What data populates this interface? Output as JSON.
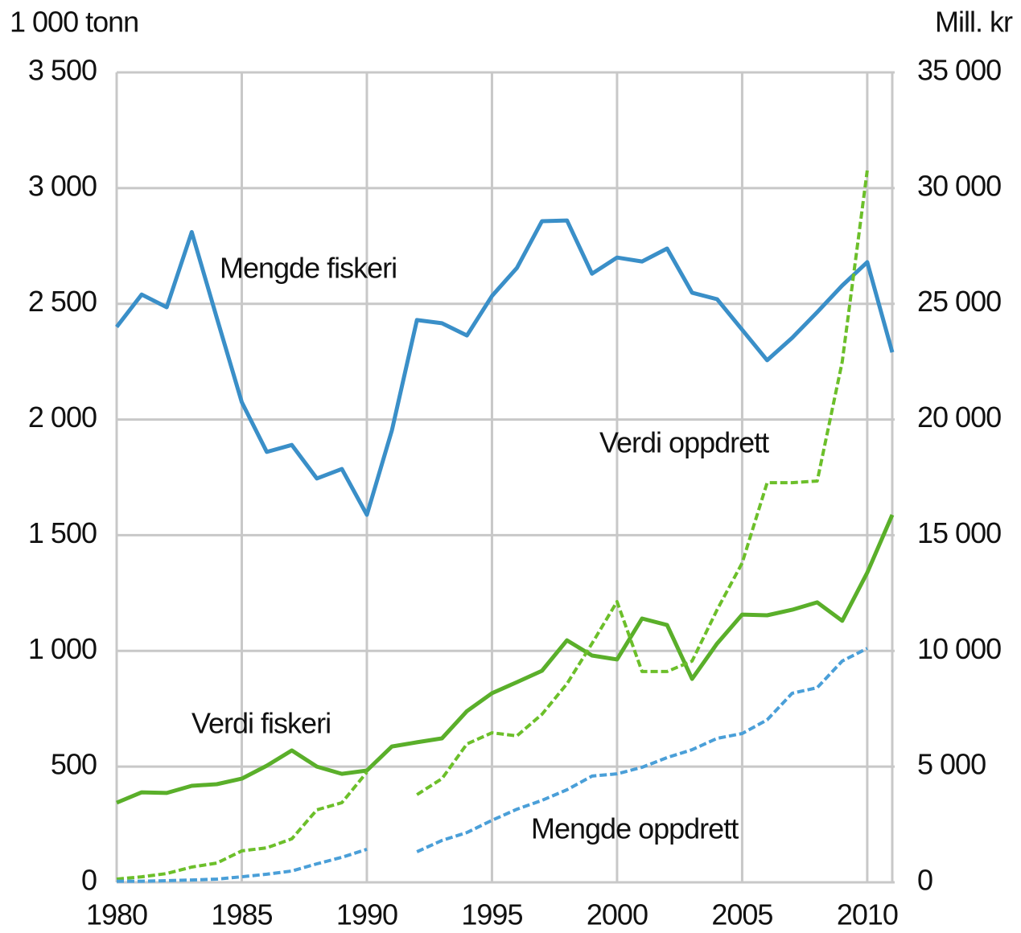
{
  "chart_data": {
    "type": "line",
    "y_label": "1 000 tonn",
    "y2_label": "Mill. kr",
    "x": [
      1980,
      1981,
      1982,
      1983,
      1984,
      1985,
      1986,
      1987,
      1988,
      1989,
      1990,
      1991,
      1992,
      1993,
      1994,
      1995,
      1996,
      1997,
      1998,
      1999,
      2000,
      2001,
      2002,
      2003,
      2004,
      2005,
      2006,
      2007,
      2008,
      2009,
      2010,
      2011
    ],
    "xlim": [
      1980,
      2011
    ],
    "xticks": [
      1980,
      1985,
      1990,
      1995,
      2000,
      2005,
      2010
    ],
    "ylim": [
      0,
      3500
    ],
    "yticks": [
      0,
      500,
      {
        "value": 1000,
        "label": "1 000"
      },
      {
        "value": 1500,
        "label": "1 500"
      },
      {
        "value": 2000,
        "label": "2 000"
      },
      {
        "value": 2500,
        "label": "2 500"
      },
      {
        "value": 3000,
        "label": "3 000"
      },
      {
        "value": 3500,
        "label": "3 500"
      }
    ],
    "y2lim": [
      0,
      35000
    ],
    "y2ticks": [
      0,
      {
        "value": 5000,
        "label": "5 000"
      },
      {
        "value": 10000,
        "label": "10 000"
      },
      {
        "value": 15000,
        "label": "15 000"
      },
      {
        "value": 20000,
        "label": "20 000"
      },
      {
        "value": 25000,
        "label": "25 000"
      },
      {
        "value": 30000,
        "label": "30 000"
      },
      {
        "value": 35000,
        "label": "35 000"
      }
    ],
    "grid": true,
    "series": [
      {
        "name": "Mengde fiskeri",
        "color": "#3a8fc8",
        "style": "solid",
        "values": [
          2400,
          2540,
          2485,
          2810,
          2440,
          2075,
          1860,
          1890,
          1745,
          1786,
          1588,
          1953,
          2430,
          2416,
          2363,
          2534,
          2655,
          2857,
          2860,
          2630,
          2700,
          2683,
          2739,
          2548,
          2520,
          2388,
          2256,
          2353,
          2464,
          2579,
          2680,
          2290
        ]
      },
      {
        "name": "Verdi fiskeri",
        "color": "#5aaf2a",
        "style": "solid",
        "axis": "y2",
        "values": [
          3440,
          3890,
          3860,
          4170,
          4240,
          4480,
          5040,
          5700,
          5000,
          4690,
          4830,
          5870,
          6050,
          6220,
          7400,
          8170,
          8650,
          9140,
          10460,
          9800,
          9630,
          11400,
          11120,
          8790,
          10320,
          11570,
          11540,
          11780,
          12100,
          11300,
          13380,
          15880
        ]
      },
      {
        "name": "Verdi oppdrett",
        "color": "#6cbf2a",
        "style": "dashed",
        "axis": "y2",
        "values": [
          140,
          240,
          380,
          660,
          830,
          1360,
          1490,
          1880,
          3130,
          3440,
          4760,
          null,
          3790,
          4480,
          5980,
          6460,
          6330,
          7260,
          8580,
          10320,
          12130,
          9110,
          9110,
          9560,
          11780,
          13800,
          17270,
          17270,
          17340,
          22490,
          30760,
          null
        ]
      },
      {
        "name": "Mengde oppdrett",
        "color": "#4a9fd8",
        "style": "dashed",
        "values": [
          5,
          5,
          7,
          10,
          14,
          24,
          35,
          49,
          80,
          108,
          143,
          null,
          132,
          181,
          215,
          268,
          316,
          354,
          400,
          459,
          469,
          497,
          539,
          573,
          622,
          643,
          702,
          817,
          841,
          956,
          1011,
          null
        ]
      }
    ]
  }
}
